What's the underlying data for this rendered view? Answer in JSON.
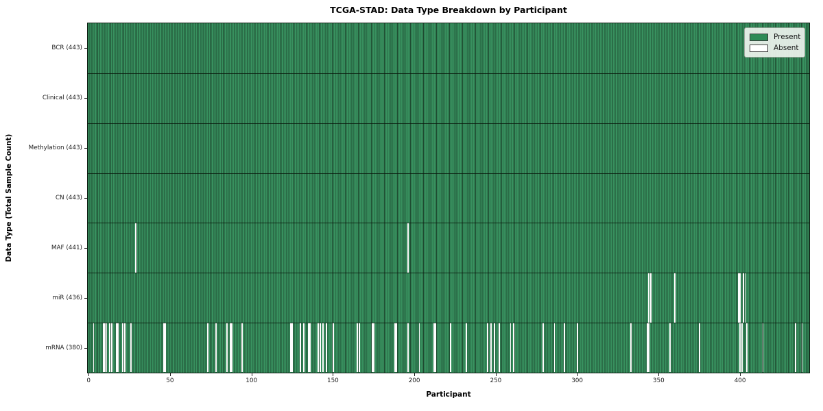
{
  "chart_data": {
    "type": "heatmap",
    "title": "TCGA-STAD: Data Type Breakdown by Participant",
    "xlabel": "Participant",
    "ylabel": "Data Type (Total Sample Count)",
    "n_participants": 443,
    "xlim": [
      -0.5,
      442.5
    ],
    "x_ticks": [
      0,
      50,
      100,
      150,
      200,
      250,
      300,
      350,
      400
    ],
    "grid": false,
    "legend_position": "upper right",
    "legend": [
      {
        "label": "Present",
        "color": "#2e8b57"
      },
      {
        "label": "Absent",
        "color": "#ffffff"
      }
    ],
    "colors": {
      "present": "#2e8b57",
      "absent": "#ffffff",
      "bar_edge": "#1e4a30"
    },
    "rows": [
      {
        "name": "BCR",
        "label": "BCR (443)",
        "present_count": 443,
        "absent_participants": []
      },
      {
        "name": "Clinical",
        "label": "Clinical (443)",
        "present_count": 443,
        "absent_participants": []
      },
      {
        "name": "Methylation",
        "label": "Methylation (443)",
        "present_count": 443,
        "absent_participants": []
      },
      {
        "name": "CN",
        "label": "CN (443)",
        "present_count": 443,
        "absent_participants": []
      },
      {
        "name": "MAF",
        "label": "MAF (441)",
        "present_count": 441,
        "absent_participants": [
          29,
          196
        ]
      },
      {
        "name": "miR",
        "label": "miR (436)",
        "present_count": 436,
        "absent_participants": [
          344,
          345,
          360,
          399,
          400,
          402,
          403
        ]
      },
      {
        "name": "mRNA",
        "label": "mRNA (380)",
        "present_count": 380,
        "absent_participants": [
          3,
          9,
          10,
          11,
          13,
          14,
          17,
          18,
          21,
          22,
          26,
          46,
          47,
          73,
          78,
          85,
          87,
          88,
          94,
          124,
          125,
          130,
          132,
          135,
          136,
          141,
          142,
          144,
          146,
          150,
          165,
          166,
          174,
          175,
          188,
          189,
          196,
          203,
          212,
          213,
          222,
          232,
          245,
          247,
          249,
          252,
          259,
          261,
          279,
          286,
          292,
          300,
          333,
          343,
          344,
          357,
          375,
          400,
          401,
          404,
          414,
          434,
          438
        ]
      }
    ]
  }
}
